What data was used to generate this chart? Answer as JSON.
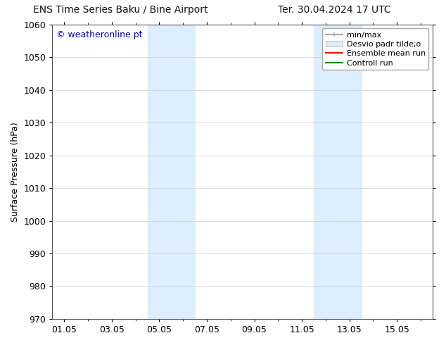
{
  "title_left": "ENS Time Series Baku / Bine Airport",
  "title_right": "Ter. 30.04.2024 17 UTC",
  "ylabel": "Surface Pressure (hPa)",
  "ylim": [
    970,
    1060
  ],
  "yticks": [
    970,
    980,
    990,
    1000,
    1010,
    1020,
    1030,
    1040,
    1050,
    1060
  ],
  "xtick_labels": [
    "01.05",
    "03.05",
    "05.05",
    "07.05",
    "09.05",
    "11.05",
    "13.05",
    "15.05"
  ],
  "xtick_positions": [
    0,
    2,
    4,
    6,
    8,
    10,
    12,
    14
  ],
  "xlim": [
    -0.5,
    15.5
  ],
  "watermark": "© weatheronline.pt",
  "watermark_color": "#0000cc",
  "shaded_bands": [
    {
      "x_start": 3.5,
      "x_end": 5.5
    },
    {
      "x_start": 10.5,
      "x_end": 12.5
    }
  ],
  "shade_color": "#ddeeff",
  "background_color": "#ffffff",
  "grid_color": "#cccccc",
  "title_fontsize": 10,
  "axis_fontsize": 9,
  "tick_fontsize": 9,
  "watermark_fontsize": 9,
  "legend_fontsize": 8
}
